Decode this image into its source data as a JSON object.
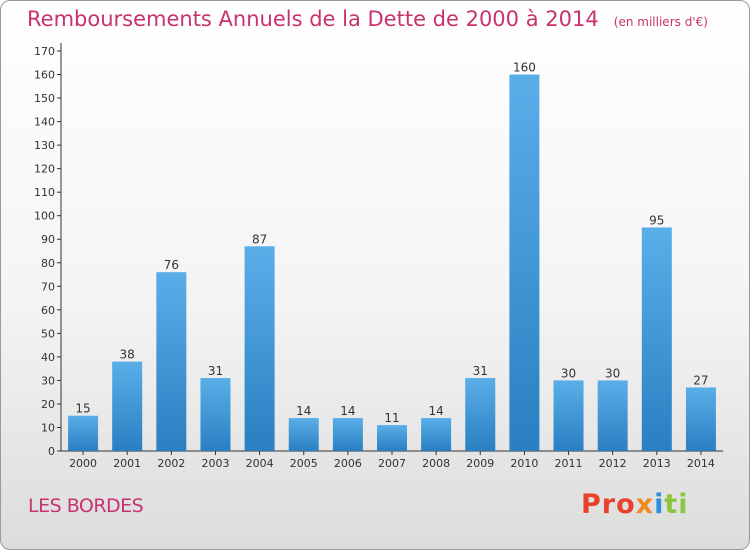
{
  "header": {
    "title": "Remboursements Annuels de la Dette de 2000 à 2014",
    "subtitle": "(en milliers d'€)"
  },
  "footer": {
    "city": "LES BORDES",
    "logo": {
      "p1": "Pro",
      "p2": "x",
      "p3": "i",
      "p4": "ti"
    }
  },
  "chart_data": {
    "type": "bar",
    "title": "Remboursements Annuels de la Dette de 2000 à 2014",
    "subtitle": "(en milliers d'€)",
    "xlabel": "",
    "ylabel": "",
    "categories": [
      "2000",
      "2001",
      "2002",
      "2003",
      "2004",
      "2005",
      "2006",
      "2007",
      "2008",
      "2009",
      "2010",
      "2011",
      "2012",
      "2013",
      "2014"
    ],
    "values": [
      15,
      38,
      76,
      31,
      87,
      14,
      14,
      11,
      14,
      31,
      160,
      30,
      30,
      95,
      27
    ],
    "ylim": [
      0,
      170
    ],
    "yticks": [
      0,
      10,
      20,
      30,
      40,
      50,
      60,
      70,
      80,
      90,
      100,
      110,
      120,
      130,
      140,
      150,
      160,
      170
    ],
    "grid": false,
    "colors": {
      "bar_light": "#5aaee8",
      "bar_dark": "#2a7fc2",
      "text": "#333333",
      "accent": "#c8326e"
    }
  }
}
